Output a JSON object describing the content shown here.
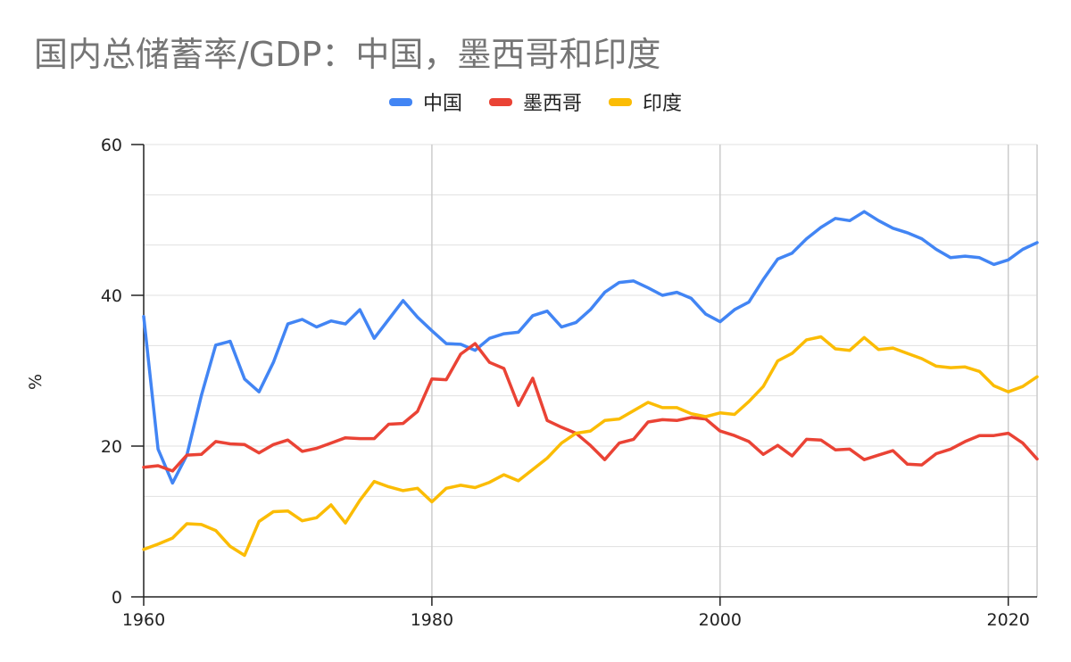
{
  "chart_data": {
    "type": "line",
    "title": "国内总储蓄率/GDP：中国，墨西哥和印度",
    "xlabel": "",
    "ylabel": "%",
    "xlim": [
      1960,
      2022
    ],
    "ylim": [
      0,
      60
    ],
    "x_ticks": [
      "1960",
      "1980",
      "2000",
      "2020"
    ],
    "y_ticks": [
      "0",
      "20",
      "40",
      "60"
    ],
    "grid": true,
    "legend_position": "top-center",
    "x": [
      1960,
      1961,
      1962,
      1963,
      1964,
      1965,
      1966,
      1967,
      1968,
      1969,
      1970,
      1971,
      1972,
      1973,
      1974,
      1975,
      1976,
      1977,
      1978,
      1979,
      1980,
      1981,
      1982,
      1983,
      1984,
      1985,
      1986,
      1987,
      1988,
      1989,
      1990,
      1991,
      1992,
      1993,
      1994,
      1995,
      1996,
      1997,
      1998,
      1999,
      2000,
      2001,
      2002,
      2003,
      2004,
      2005,
      2006,
      2007,
      2008,
      2009,
      2010,
      2011,
      2012,
      2013,
      2014,
      2015,
      2016,
      2017,
      2018,
      2019,
      2020,
      2021,
      2022
    ],
    "series": [
      {
        "name": "中国",
        "color": "#4285F4",
        "values": [
          37.2,
          19.6,
          15.1,
          18.8,
          26.7,
          33.4,
          33.9,
          28.9,
          27.2,
          31.1,
          36.2,
          36.8,
          35.8,
          36.6,
          36.2,
          38.1,
          34.3,
          36.8,
          39.3,
          37.1,
          35.3,
          33.6,
          33.5,
          32.7,
          34.3,
          34.9,
          35.1,
          37.3,
          37.9,
          35.8,
          36.4,
          38.1,
          40.4,
          41.7,
          41.9,
          41.0,
          40.0,
          40.4,
          39.6,
          37.5,
          36.5,
          38.1,
          39.1,
          42.1,
          44.8,
          45.6,
          47.5,
          49.0,
          50.2,
          49.9,
          51.1,
          49.9,
          48.9,
          48.3,
          47.5,
          46.1,
          45.0,
          45.2,
          45.0,
          44.1,
          44.7,
          46.1,
          47.0
        ]
      },
      {
        "name": "墨西哥",
        "color": "#EA4335",
        "values": [
          17.2,
          17.4,
          16.7,
          18.8,
          18.9,
          20.6,
          20.3,
          20.2,
          19.1,
          20.2,
          20.8,
          19.3,
          19.7,
          20.4,
          21.1,
          21.0,
          21.0,
          22.9,
          23.0,
          24.6,
          28.9,
          28.8,
          32.2,
          33.6,
          31.1,
          30.3,
          25.4,
          29.0,
          23.4,
          22.5,
          21.7,
          20.1,
          18.2,
          20.4,
          20.9,
          23.2,
          23.5,
          23.4,
          23.8,
          23.6,
          22.0,
          21.4,
          20.6,
          18.9,
          20.1,
          18.7,
          20.9,
          20.8,
          19.5,
          19.6,
          18.2,
          18.8,
          19.4,
          17.6,
          17.5,
          19.0,
          19.6,
          20.6,
          21.4,
          21.4,
          21.7,
          20.4,
          18.3
        ]
      },
      {
        "name": "印度",
        "color": "#FBBC04",
        "values": [
          6.3,
          7.0,
          7.8,
          9.7,
          9.6,
          8.8,
          6.7,
          5.5,
          10.0,
          11.3,
          11.4,
          10.1,
          10.5,
          12.2,
          9.8,
          12.8,
          15.3,
          14.6,
          14.1,
          14.4,
          12.6,
          14.4,
          14.8,
          14.5,
          15.2,
          16.2,
          15.4,
          16.9,
          18.4,
          20.4,
          21.7,
          22.0,
          23.4,
          23.6,
          24.7,
          25.8,
          25.1,
          25.1,
          24.3,
          23.9,
          24.4,
          24.2,
          25.9,
          27.9,
          31.3,
          32.3,
          34.1,
          34.5,
          32.9,
          32.7,
          34.4,
          32.8,
          33.0,
          32.3,
          31.6,
          30.6,
          30.4,
          30.5,
          29.9,
          28.0,
          27.2,
          27.9,
          29.2
        ]
      }
    ]
  }
}
